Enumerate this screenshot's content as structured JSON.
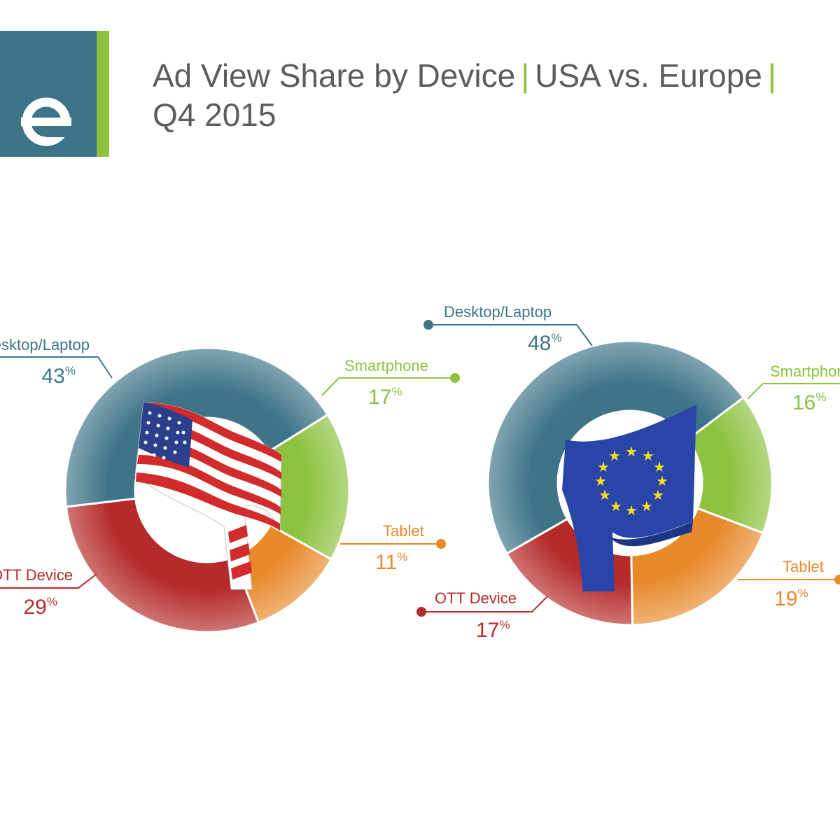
{
  "header": {
    "title_part1": "Ad View Share by Device",
    "separator": "|",
    "title_part2": "USA vs. Europe",
    "title_part3": "Q4 2015"
  },
  "colors": {
    "desktop": "#3e7488",
    "smartphone": "#8cc23f",
    "tablet": "#e8892b",
    "ott": "#b52a2a",
    "title": "#5c5c5c",
    "accent": "#8cc23f"
  },
  "chart_data": [
    {
      "type": "pie",
      "categories": [
        "Desktop/Laptop",
        "Smartphone",
        "Tablet",
        "OTT Device"
      ],
      "values": [
        43,
        17,
        11,
        29
      ],
      "value_labels": [
        "43",
        "17",
        "11",
        "29"
      ],
      "unit": "%",
      "center_image": "usa-flag"
    },
    {
      "type": "pie",
      "categories": [
        "Desktop/Laptop",
        "Smartphone",
        "Tablet",
        "OTT Device"
      ],
      "values": [
        48,
        16,
        19,
        17
      ],
      "value_labels": [
        "48",
        "16",
        "19",
        "17"
      ],
      "unit": "%",
      "center_image": "eu-flag"
    }
  ]
}
